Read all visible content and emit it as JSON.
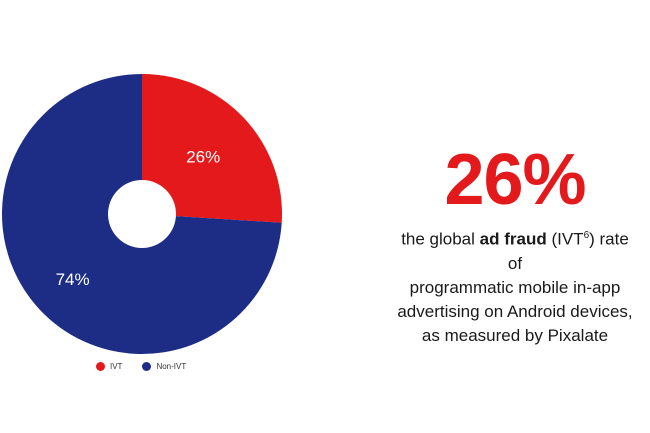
{
  "colors": {
    "ivt": "#e3191c",
    "non_ivt": "#1d2d86",
    "accent": "#e3191c",
    "background": "#ffffff"
  },
  "chart_data": {
    "type": "pie",
    "donut": true,
    "slices": [
      {
        "name": "IVT",
        "value": 26,
        "label": "26%"
      },
      {
        "name": "Non-IVT",
        "value": 74,
        "label": "74%"
      }
    ],
    "legend": {
      "placement": "bottom",
      "entries": [
        "IVT",
        "Non-IVT"
      ]
    }
  },
  "stat": {
    "value": "26%",
    "line1_pre": "the global",
    "line1_bold": "ad fraud",
    "line1_abbr": "(IVT",
    "line1_sup": "6",
    "line1_post": ") rate of",
    "line2": "programmatic mobile in-app",
    "line3": "advertising on Android devices,",
    "line4": "as measured by Pixalate"
  }
}
